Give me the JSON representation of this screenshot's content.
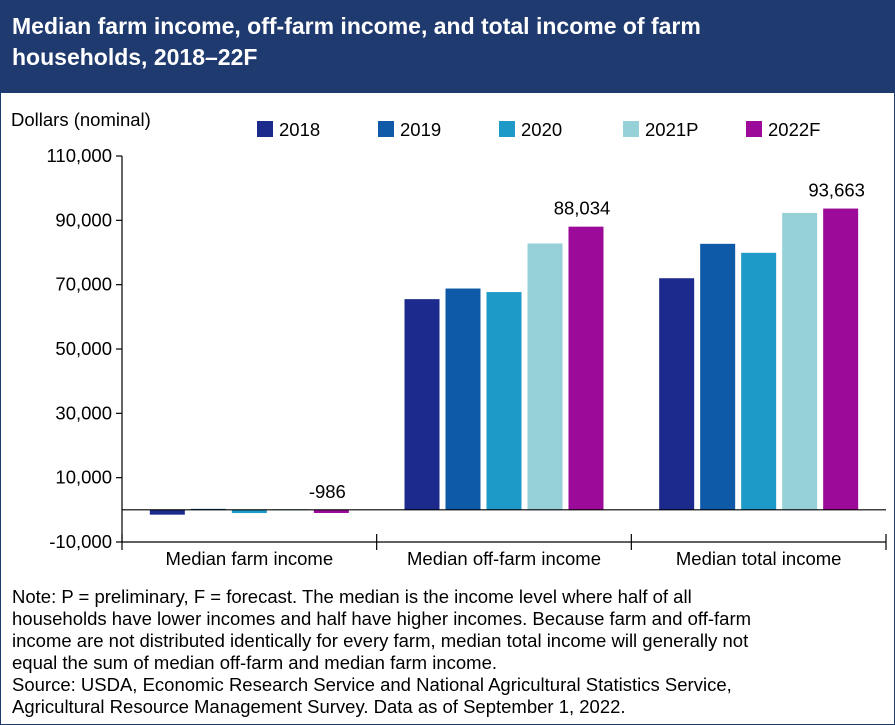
{
  "header": {
    "title_line1": "Median farm income, off-farm income, and total income of farm",
    "title_line2": "households, 2018–22F"
  },
  "chart_data": {
    "type": "bar",
    "ylabel": "Dollars (nominal)",
    "ylim": [
      -10000,
      110000
    ],
    "yticks": [
      -10000,
      10000,
      30000,
      50000,
      70000,
      90000,
      110000
    ],
    "ytick_labels": [
      "-10,000",
      "10,000",
      "30,000",
      "50,000",
      "70,000",
      "90,000",
      "110,000"
    ],
    "categories": [
      "Median farm income",
      "Median off-farm income",
      "Median total income"
    ],
    "series": [
      {
        "name": "2018",
        "color": "#1b2a8c",
        "values": [
          -1500,
          65500,
          72000
        ]
      },
      {
        "name": "2019",
        "color": "#0f5aa8",
        "values": [
          300,
          68800,
          82700
        ]
      },
      {
        "name": "2020",
        "color": "#1e9ac9",
        "values": [
          -1000,
          67700,
          79900
        ]
      },
      {
        "name": "2021P",
        "color": "#96d1d8",
        "values": [
          200,
          82800,
          92300
        ]
      },
      {
        "name": "2022F",
        "color": "#9c0a9a",
        "values": [
          -986,
          88034,
          93663
        ]
      }
    ],
    "data_labels": [
      {
        "category": 0,
        "series": 4,
        "text": "-986"
      },
      {
        "category": 1,
        "series": 4,
        "text": "88,034"
      },
      {
        "category": 2,
        "series": 4,
        "text": "93,663"
      }
    ],
    "legend_position": "top",
    "grid": false
  },
  "notes": {
    "lines": [
      "Note: P = preliminary, F = forecast. The median is the income level where half of all",
      "households have lower incomes and half have higher incomes. Because farm and off-farm",
      "income are not distributed identically for every farm, median total income will generally not",
      "equal the sum of median off-farm and median farm income.",
      "Source: USDA, Economic Research Service and National Agricultural Statistics Service,",
      "Agricultural Resource Management Survey. Data as of September 1, 2022."
    ]
  }
}
